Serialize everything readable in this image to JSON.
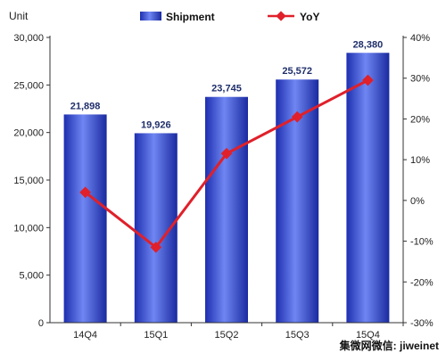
{
  "chart_data": {
    "type": "bar",
    "unit_label": "Unit",
    "categories": [
      "14Q4",
      "15Q1",
      "15Q2",
      "15Q3",
      "15Q4"
    ],
    "series": [
      {
        "name": "Shipment",
        "type": "bar",
        "axis": "left",
        "values": [
          21898,
          19926,
          23745,
          25572,
          28380
        ],
        "labels": [
          "21,898",
          "19,926",
          "23,745",
          "25,572",
          "28,380"
        ]
      },
      {
        "name": "YoY",
        "type": "line",
        "axis": "right",
        "values": [
          2,
          -11.5,
          11.5,
          20.5,
          29.5
        ]
      }
    ],
    "y_left": {
      "min": 0,
      "max": 30000,
      "ticks": [
        0,
        5000,
        10000,
        15000,
        20000,
        25000,
        30000
      ],
      "tick_labels": [
        "0",
        "5,000",
        "10,000",
        "15,000",
        "20,000",
        "25,000",
        "30,000"
      ]
    },
    "y_right": {
      "min": -30,
      "max": 40,
      "ticks": [
        -30,
        -20,
        -10,
        0,
        10,
        20,
        30,
        40
      ],
      "tick_labels": [
        "-30%",
        "-20%",
        "-10%",
        "0%",
        "10%",
        "20%",
        "30%",
        "40%"
      ]
    },
    "legend_position": "top",
    "grid": false,
    "colors": {
      "bar": "#2b3fd1",
      "bar_light": "#6f86f2",
      "line": "#e0202a",
      "axis": "#333333"
    }
  },
  "watermark": "集微网微信: jiweinet"
}
